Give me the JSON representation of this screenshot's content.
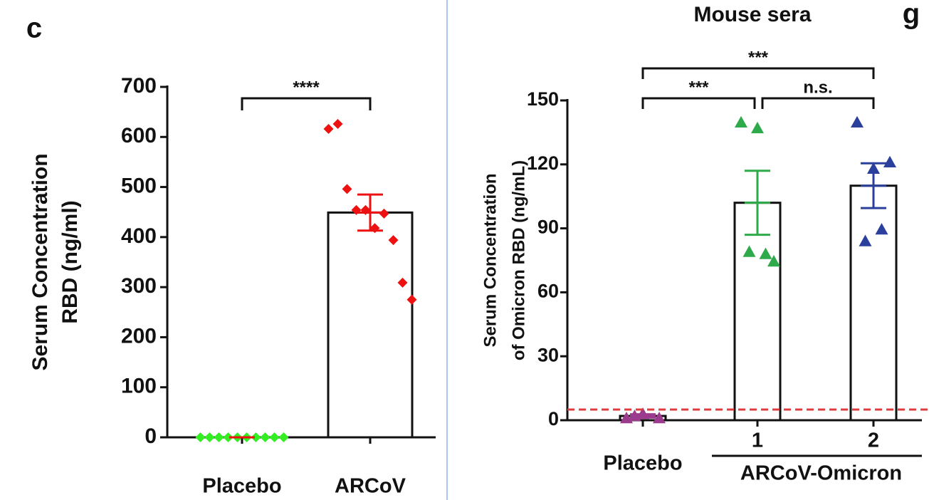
{
  "chart_data": [
    {
      "type": "bar",
      "panel_label": "c",
      "y_label": [
        "Serum Concentration",
        "RBD  (ng/ml)"
      ],
      "categories": [
        "Placebo",
        "ARCoV"
      ],
      "values": [
        0,
        449
      ],
      "errors": [
        0,
        36
      ],
      "points": [
        [
          0,
          0,
          0,
          0,
          0,
          0,
          0,
          0,
          0,
          0
        ],
        [
          616,
          626,
          496,
          454,
          454,
          418,
          447,
          394,
          309,
          275
        ]
      ],
      "point_colors": [
        "#33ee22",
        "#ee1111"
      ],
      "marker": "diamond",
      "ylim": [
        0,
        700
      ],
      "yticks": [
        0,
        100,
        200,
        300,
        400,
        500,
        600,
        700
      ],
      "significance": [
        {
          "from": 0,
          "to": 1,
          "label": "****"
        }
      ]
    },
    {
      "type": "bar",
      "title": "Mouse sera",
      "panel_label": "g",
      "y_label": [
        "Serum Concentration",
        "of Omicron RBD (ng/mL)"
      ],
      "categories": [
        "Placebo",
        "1",
        "2"
      ],
      "group_label": "ARCoV-Omicron",
      "group_span": [
        1,
        2
      ],
      "values": [
        2,
        102,
        110
      ],
      "errors": [
        0.8,
        15,
        10.5
      ],
      "points": [
        [
          1,
          3,
          1,
          2
        ],
        [
          139.7,
          137,
          74.5,
          79,
          78
        ],
        [
          139.7,
          118,
          121,
          84,
          89.5
        ]
      ],
      "point_colors": [
        "#9b3b8e",
        "#2eaa4a",
        "#2b3f9c"
      ],
      "marker": "triangle",
      "ylim": [
        0,
        150
      ],
      "yticks": [
        0,
        30,
        60,
        90,
        120,
        150
      ],
      "threshold": 5,
      "threshold_color": "#e03c3c",
      "significance": [
        {
          "from": 0,
          "to": 1,
          "label": "***"
        },
        {
          "from": 1,
          "to": 2,
          "label": "n.s."
        },
        {
          "from": 0,
          "to": 2,
          "label": "***"
        }
      ]
    }
  ]
}
